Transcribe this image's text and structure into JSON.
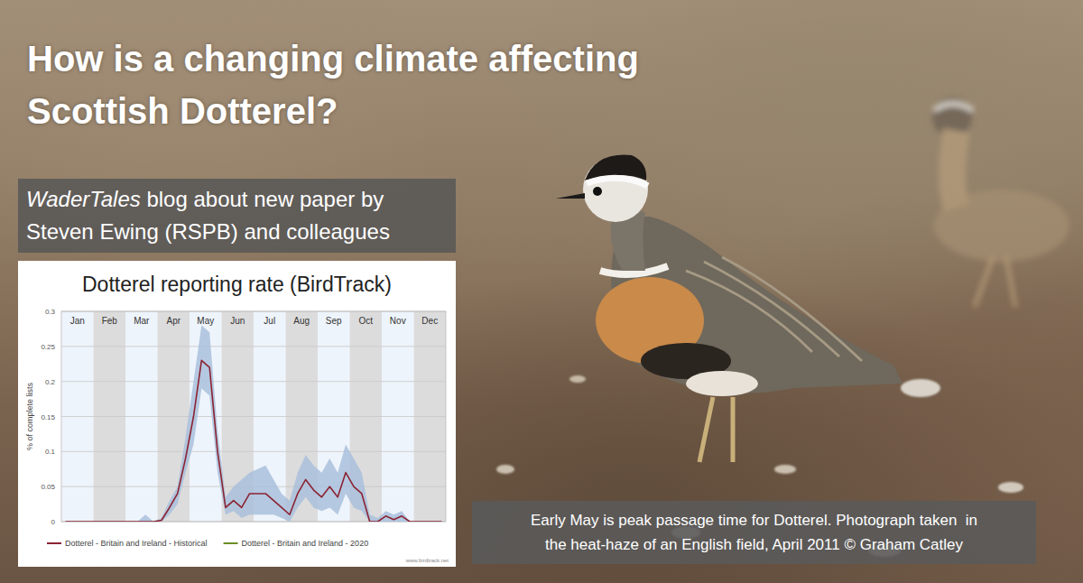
{
  "header": {
    "title_lines": [
      "How is a changing climate affecting",
      "Scottish Dotterel?"
    ]
  },
  "subtitle": {
    "emphasis": "WaderTales",
    "line1_rest": " blog about new paper by",
    "line2": "Steven Ewing (RSPB) and colleagues"
  },
  "caption": {
    "lines": [
      "Early May is peak passage time for Dotterel. Photograph taken  in",
      "the heat-haze of an English field, April 2011 © Graham Catley"
    ]
  },
  "chart_data": {
    "type": "line",
    "title": "Dotterel reporting rate (BirdTrack)",
    "y_label": "% of complete lists",
    "source": "www.birdtrack.net",
    "categories": [
      "Jan",
      null,
      null,
      null,
      "Feb",
      null,
      null,
      null,
      "Mar",
      null,
      null,
      null,
      "Apr",
      null,
      null,
      null,
      "May",
      null,
      null,
      null,
      "Jun",
      null,
      null,
      null,
      "Jul",
      null,
      null,
      null,
      "Aug",
      null,
      null,
      null,
      "Sep",
      null,
      null,
      null,
      "Oct",
      null,
      null,
      null,
      "Nov",
      null,
      null,
      null,
      "Dec",
      null,
      null,
      null
    ],
    "series": [
      {
        "name": "Dotterel - Britain and Ireland - Historical",
        "color": "#8b2332",
        "values": [
          0,
          0,
          0,
          0,
          0,
          0,
          0,
          0,
          0,
          0,
          0,
          0,
          0.002,
          0.02,
          0.04,
          0.09,
          0.15,
          0.23,
          0.22,
          0.1,
          0.02,
          0.03,
          0.02,
          0.04,
          0.04,
          0.04,
          0.03,
          0.02,
          0.01,
          0.04,
          0.06,
          0.045,
          0.035,
          0.05,
          0.035,
          0.07,
          0.05,
          0.04,
          0,
          0,
          0.008,
          0.003,
          0.008,
          0,
          0,
          0,
          0,
          0
        ],
        "ci_upper": [
          0,
          0,
          0,
          0,
          0,
          0,
          0,
          0,
          0,
          0,
          0.01,
          0,
          0.005,
          0.03,
          0.05,
          0.12,
          0.2,
          0.28,
          0.27,
          0.13,
          0.035,
          0.05,
          0.06,
          0.07,
          0.075,
          0.08,
          0.06,
          0.04,
          0.03,
          0.07,
          0.095,
          0.08,
          0.07,
          0.09,
          0.07,
          0.11,
          0.09,
          0.07,
          0.01,
          0.005,
          0.015,
          0.01,
          0.015,
          0,
          0,
          0,
          0,
          0
        ],
        "ci_lower": [
          0,
          0,
          0,
          0,
          0,
          0,
          0,
          0,
          0,
          0,
          0,
          0,
          0,
          0.01,
          0.025,
          0.07,
          0.11,
          0.19,
          0.18,
          0.07,
          0.01,
          0.015,
          0.005,
          0.01,
          0.01,
          0.01,
          0.01,
          0.005,
          0,
          0.02,
          0.035,
          0.02,
          0.015,
          0.02,
          0.01,
          0.04,
          0.02,
          0.015,
          0,
          0,
          0,
          0,
          0,
          0,
          0,
          0,
          0,
          0
        ]
      },
      {
        "name": "Dotterel - Britain and Ireland - 2020",
        "color": "#6b8e23",
        "values": [
          null,
          null,
          null,
          null,
          null,
          null,
          null,
          null,
          null,
          null,
          null,
          null,
          null,
          null,
          null,
          null,
          null,
          null,
          null,
          null,
          null,
          null,
          null,
          null,
          null,
          null,
          null,
          null,
          null,
          null,
          null,
          null,
          null,
          null,
          null,
          null,
          null,
          null,
          null,
          null,
          null,
          null,
          null,
          null,
          null,
          null,
          null,
          null
        ]
      }
    ],
    "ylim": [
      0,
      0.3
    ],
    "yticks": [
      0,
      0.05,
      0.1,
      0.15,
      0.2,
      0.25,
      0.3
    ],
    "grid": true,
    "legend": "bottom"
  }
}
